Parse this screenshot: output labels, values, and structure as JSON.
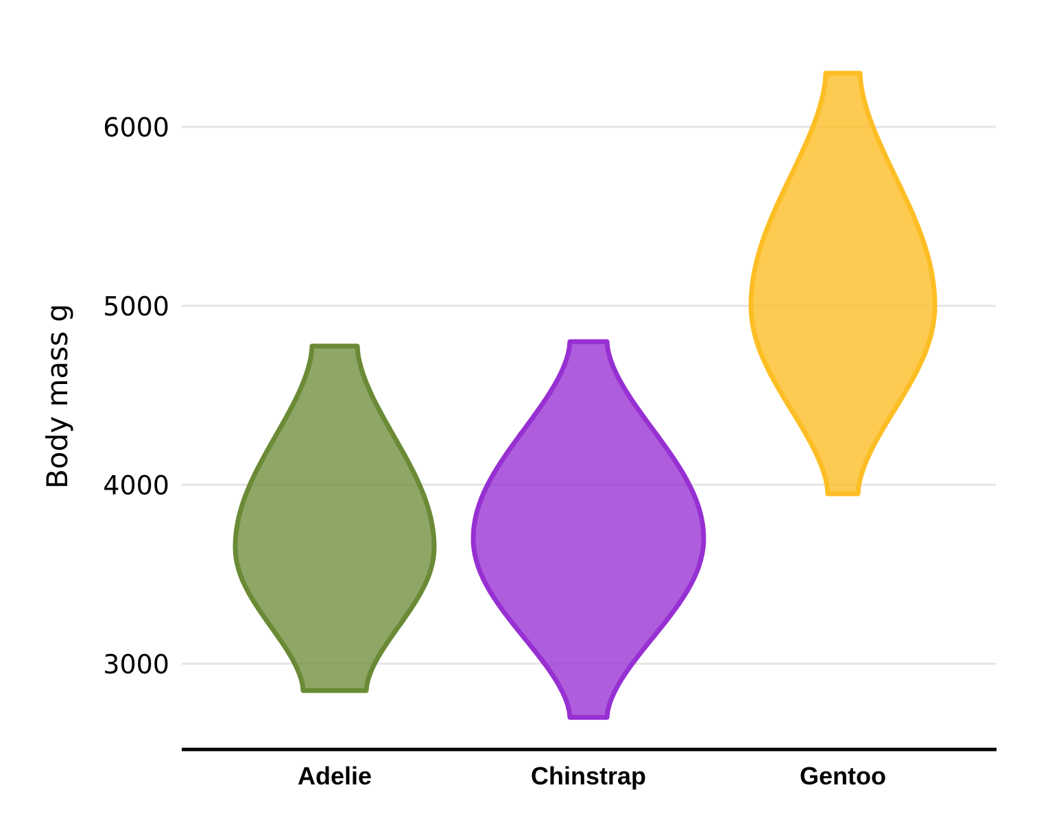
{
  "chart_data": {
    "type": "violin",
    "title": "",
    "xlabel": "",
    "ylabel": "Body mass g",
    "ylim": [
      2650,
      6400
    ],
    "yticks": [
      3000,
      4000,
      5000,
      6000
    ],
    "grid": "horizontal",
    "categories": [
      "Adelie",
      "Chinstrap",
      "Gentoo"
    ],
    "series": [
      {
        "category": "Adelie",
        "color": "#6a8a36",
        "fill_opacity": 0.76,
        "min": 2850,
        "max": 4775,
        "peak": 3650
      },
      {
        "category": "Chinstrap",
        "color": "#9730d2",
        "fill_opacity": 0.78,
        "min": 2700,
        "max": 4800,
        "peak": 3700
      },
      {
        "category": "Gentoo",
        "color": "#fdbe25",
        "fill_opacity": 0.8,
        "min": 3950,
        "max": 6300,
        "peak": 5000
      }
    ]
  }
}
